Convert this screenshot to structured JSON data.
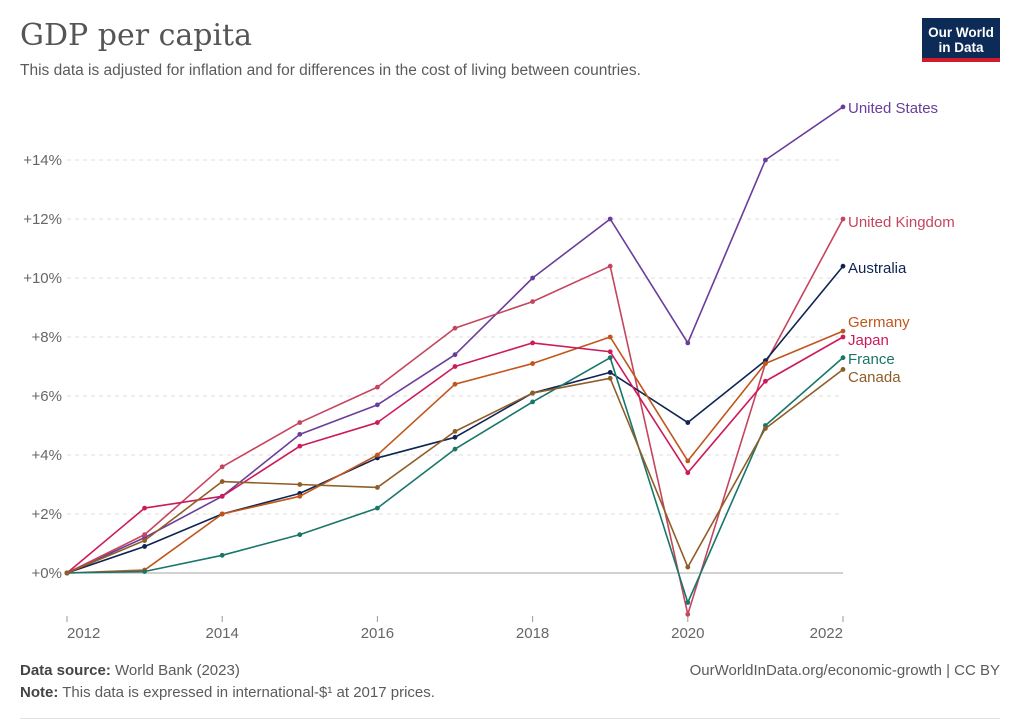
{
  "header": {
    "title": "GDP per capita",
    "subtitle": "This data is adjusted for inflation and for differences in the cost of living between countries.",
    "logo_line1": "Our World",
    "logo_line2": "in Data",
    "logo_colors": {
      "background": "#0d2b57",
      "stripe": "#d01a2e"
    }
  },
  "footer": {
    "source_label": "Data source:",
    "source_value": "World Bank (2023)",
    "note_label": "Note:",
    "note_value": "This data is expressed in international-$¹ at 2017 prices.",
    "link": "OurWorldInData.org/economic-growth | CC BY"
  },
  "chart_data": {
    "type": "line",
    "x": [
      2012,
      2013,
      2014,
      2015,
      2016,
      2017,
      2018,
      2019,
      2020,
      2021,
      2022
    ],
    "xticks": [
      "2012",
      "2014",
      "2016",
      "2018",
      "2020",
      "2022"
    ],
    "xtick_values": [
      2012,
      2014,
      2016,
      2018,
      2020,
      2022
    ],
    "yticks": [
      "+14%",
      "+12%",
      "+10%",
      "+8%",
      "+6%",
      "+4%",
      "+2%",
      "+0%"
    ],
    "ytick_values": [
      14,
      12,
      10,
      8,
      6,
      4,
      2,
      0
    ],
    "ylim": [
      -1.6,
      16
    ],
    "xlim": [
      2012,
      2022
    ],
    "grid": true,
    "legend": "right-end labels",
    "series": [
      {
        "name": "United States",
        "color": "#6a3d9a",
        "values": [
          0,
          1.2,
          2.6,
          4.7,
          5.7,
          7.4,
          10.0,
          12.0,
          7.8,
          14.0,
          15.8
        ]
      },
      {
        "name": "United Kingdom",
        "color": "#c4455e",
        "values": [
          0,
          1.3,
          3.6,
          5.1,
          6.3,
          8.3,
          9.2,
          10.4,
          -1.4,
          7.1,
          12.0
        ]
      },
      {
        "name": "Australia",
        "color": "#0f2452",
        "values": [
          0,
          0.9,
          2.0,
          2.7,
          3.9,
          4.6,
          6.1,
          6.8,
          5.1,
          7.2,
          10.4
        ]
      },
      {
        "name": "Germany",
        "color": "#c0561c",
        "values": [
          0,
          0.1,
          2.0,
          2.6,
          4.0,
          6.4,
          7.1,
          8.0,
          3.8,
          7.1,
          8.2
        ]
      },
      {
        "name": "Japan",
        "color": "#cc1b5b",
        "values": [
          0,
          2.2,
          2.6,
          4.3,
          5.1,
          7.0,
          7.8,
          7.5,
          3.4,
          6.5,
          8.0
        ]
      },
      {
        "name": "France",
        "color": "#18776a",
        "values": [
          0,
          0.05,
          0.6,
          1.3,
          2.2,
          4.2,
          5.8,
          7.3,
          -1.0,
          5.0,
          7.3
        ]
      },
      {
        "name": "Canada",
        "color": "#8f5d27",
        "values": [
          0,
          1.1,
          3.1,
          3.0,
          2.9,
          4.8,
          6.1,
          6.6,
          0.2,
          4.9,
          6.9
        ]
      }
    ]
  }
}
